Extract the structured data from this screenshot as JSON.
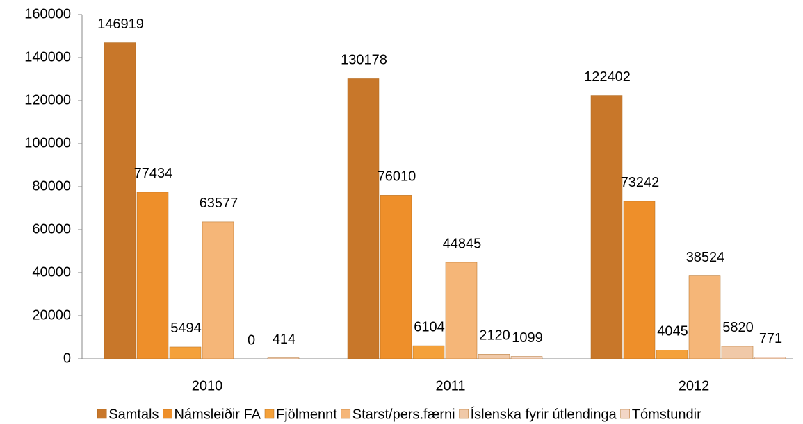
{
  "chart_data": {
    "type": "bar",
    "categories": [
      "2010",
      "2011",
      "2012"
    ],
    "series": [
      {
        "name": "Samtals",
        "color": "#c8772a",
        "values": [
          146919,
          130178,
          122402
        ]
      },
      {
        "name": "Námsleiðir FA",
        "color": "#ee8f2a",
        "values": [
          77434,
          76010,
          73242
        ]
      },
      {
        "name": "Fjölmennt",
        "color": "#f4a13a",
        "values": [
          5494,
          6104,
          4045
        ]
      },
      {
        "name": "Starst/pers.færni",
        "color": "#f5b678",
        "values": [
          63577,
          44845,
          38524
        ]
      },
      {
        "name": "Íslenska fyrir útlendinga",
        "color": "#f0c9a8",
        "values": [
          0,
          2120,
          5820
        ]
      },
      {
        "name": "Tómstundir",
        "color": "#f2d6c6",
        "values": [
          414,
          1099,
          771
        ]
      }
    ],
    "ylim": [
      0,
      160000
    ],
    "yticks": [
      0,
      20000,
      40000,
      60000,
      80000,
      100000,
      120000,
      140000,
      160000
    ],
    "grid": false,
    "legend": "bottom"
  }
}
